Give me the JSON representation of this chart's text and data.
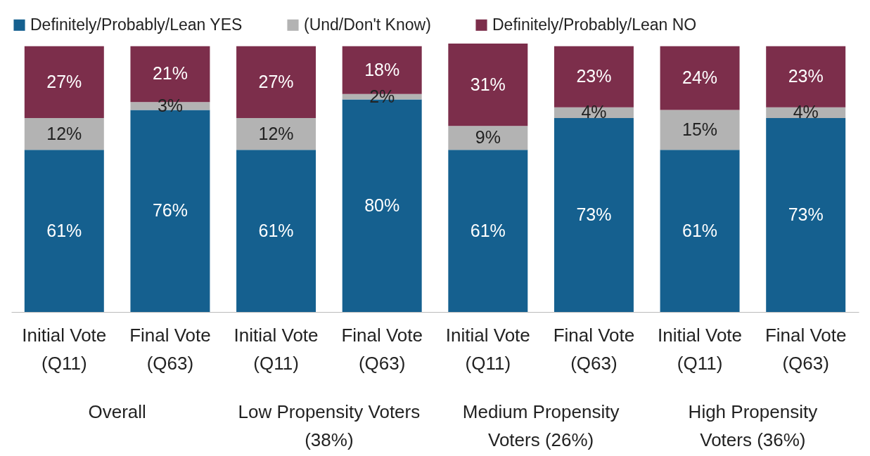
{
  "chart_data": {
    "type": "bar",
    "stacked": true,
    "legend": "top",
    "grid": false,
    "categories": [
      "Initial Vote (Q11)",
      "Final Vote (Q63)",
      "Initial Vote (Q11)",
      "Final Vote (Q63)",
      "Initial Vote (Q11)",
      "Final Vote (Q63)",
      "Initial Vote (Q11)",
      "Final Vote (Q63)"
    ],
    "series": [
      {
        "name": "Definitely/Probably/Lean YES",
        "color": "#15608f",
        "values": [
          61,
          76,
          61,
          80,
          61,
          73,
          61,
          73
        ],
        "value_labels": [
          "61%",
          "76%",
          "61%",
          "80%",
          "61%",
          "73%",
          "61%",
          "73%"
        ]
      },
      {
        "name": "(Und/Don't Know)",
        "color": "#b3b3b3",
        "values": [
          12,
          3,
          12,
          2,
          9,
          4,
          15,
          4
        ],
        "value_labels": [
          "12%",
          "3%",
          "12%",
          "2%",
          "9%",
          "4%",
          "15%",
          "4%"
        ]
      },
      {
        "name": "Definitely/Probably/Lean NO",
        "color": "#7c2e4b",
        "values": [
          27,
          21,
          27,
          18,
          31,
          23,
          24,
          23
        ],
        "value_labels": [
          "27%",
          "21%",
          "27%",
          "18%",
          "31%",
          "23%",
          "24%",
          "23%"
        ]
      }
    ],
    "annotations": [
      "Overall",
      "Low Propensity Voters (38%)",
      "Medium Propensity Voters (26%)",
      "High Propensity Voters (36%)"
    ]
  }
}
